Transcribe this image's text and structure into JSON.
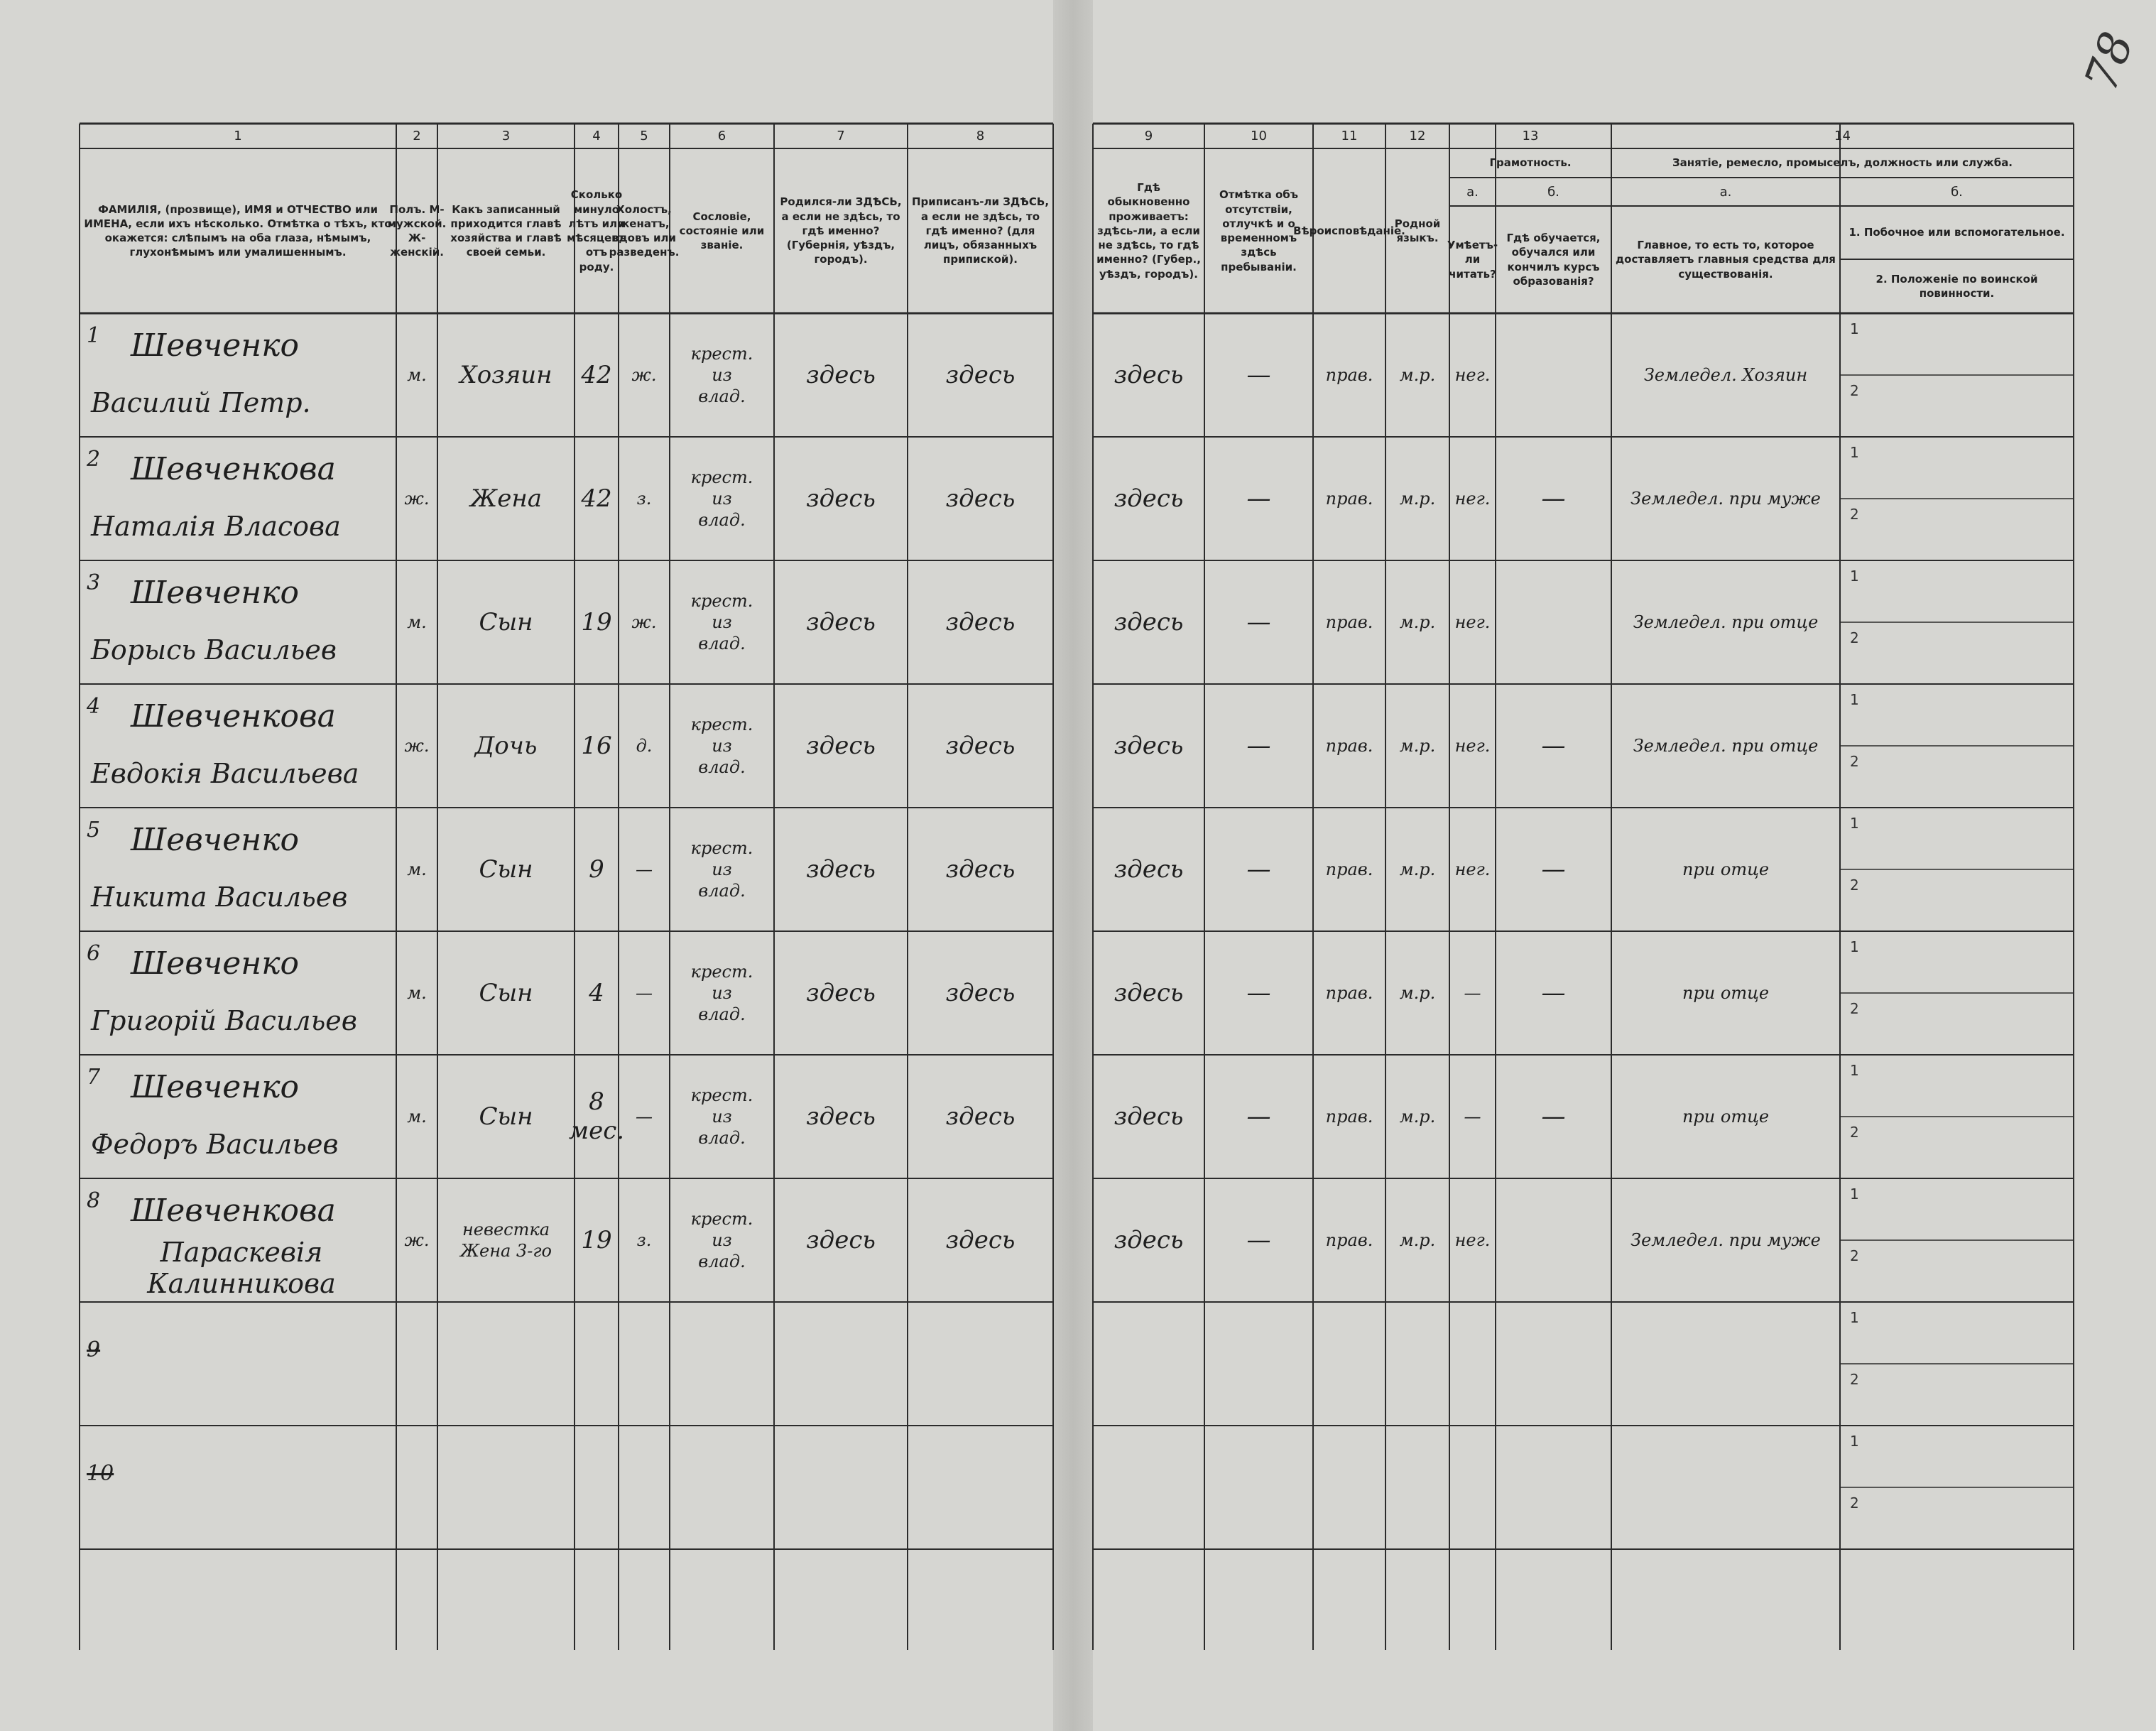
{
  "corner_mark": "78",
  "header": {
    "column_numbers": [
      "1",
      "2",
      "3",
      "4",
      "5",
      "6",
      "7",
      "8",
      "9",
      "10",
      "11",
      "12",
      "13",
      "14"
    ],
    "columns": {
      "name": "ФАМИЛІЯ, (прозвище), ИМЯ и ОТЧЕСТВО или ИМЕНА, если ихъ нѣсколько. Отмѣтка о тѣхъ, кто окажется: слѣпымъ на оба глаза, нѣмымъ, глухонѣмымъ или умалишеннымъ.",
      "sex": "Полъ. М-мужской. Ж-женскій.",
      "relation": "Какъ записанный приходится главѣ хозяйства и главѣ своей семьи.",
      "age": "Сколько минуло лѣтъ или мѣсяцевъ отъ роду.",
      "marital_status": "Холостъ, женатъ, вдовъ или разведенъ.",
      "estate": "Сословіе, состояніе или званіе.",
      "birthplace": "Родился-ли ЗДѢСЬ, а если не здѣсь, то гдѣ именно? (Губернія, уѣздъ, городъ).",
      "registered": "Приписанъ-ли ЗДѢСЬ, а если не здѣсь, то гдѣ именно? (для лицъ, обязанныхъ припиской).",
      "residence": "Гдѣ обыкновенно проживаетъ: здѣсь-ли, а если не здѣсь, то гдѣ именно? (Губер., уѣздъ, городъ).",
      "absence": "Отмѣтка объ отсутствіи, отлучкѣ и о временномъ здѣсь пребываніи.",
      "religion": "Вѣроисповѣданіе.",
      "language": "Родной языкъ.",
      "literacy_group": "Грамотность.",
      "literacy_a": "а.",
      "literacy_b": "б.",
      "literacy": "Умѣетъ-ли читать?",
      "education": "Гдѣ обучается, обучался или кончилъ курсъ образованія?",
      "occupation_group": "Занятіе, ремесло, промыселъ, должность или служба.",
      "occupation_a": "а.",
      "occupation_b": "б.",
      "occupation": "Главное, то есть то, которое доставляетъ главныя средства для существованія.",
      "side_1": "1. Побочное или вспомогательное.",
      "side_2": "2. Положеніе по воинской повинности."
    },
    "subrow_labels": [
      "1",
      "2"
    ]
  },
  "table": {
    "rows": [
      {
        "number": "1",
        "surname": "Шевченко",
        "given_names": "Василий Петр.",
        "sex": "м.",
        "relation": "Хозяин",
        "age": "42",
        "marital_status": "ж.",
        "estate": "крест. из влад.",
        "birthplace": "здесь",
        "registered": "здесь",
        "residence": "здесь",
        "absence": "—",
        "religion": "прав.",
        "language": "м.р.",
        "literacy": "нег.",
        "occupation": "Земледел. Хозяин"
      },
      {
        "number": "2",
        "surname": "Шевченкова",
        "given_names": "Наталія Власова",
        "sex": "ж.",
        "relation": "Жена",
        "age": "42",
        "marital_status": "з.",
        "estate": "крест. из влад.",
        "birthplace": "здесь",
        "registered": "здесь",
        "residence": "здесь",
        "absence": "—",
        "religion": "прав.",
        "language": "м.р.",
        "literacy": "нег.",
        "education": "—",
        "occupation": "Земледел. при муже"
      },
      {
        "number": "3",
        "surname": "Шевченко",
        "given_names": "Борысь Васильев",
        "sex": "м.",
        "relation": "Сын",
        "age": "19",
        "marital_status": "ж.",
        "estate": "крест. из влад.",
        "birthplace": "здесь",
        "registered": "здесь",
        "residence": "здесь",
        "absence": "—",
        "religion": "прав.",
        "language": "м.р.",
        "literacy": "нег.",
        "occupation": "Земледел. при отце"
      },
      {
        "number": "4",
        "surname": "Шевченкова",
        "given_names": "Евдокія Васильева",
        "sex": "ж.",
        "relation": "Дочь",
        "age": "16",
        "marital_status": "д.",
        "estate": "крест. из влад.",
        "birthplace": "здесь",
        "registered": "здесь",
        "residence": "здесь",
        "absence": "—",
        "religion": "прав.",
        "language": "м.р.",
        "literacy": "нег.",
        "education": "—",
        "occupation": "Земледел. при отце"
      },
      {
        "number": "5",
        "surname": "Шевченко",
        "given_names": "Никита Васильев",
        "sex": "м.",
        "relation": "Сын",
        "age": "9",
        "marital_status": "—",
        "estate": "крест. из влад.",
        "birthplace": "здесь",
        "registered": "здесь",
        "residence": "здесь",
        "absence": "—",
        "religion": "прав.",
        "language": "м.р.",
        "literacy": "нег.",
        "education": "—",
        "occupation": "при отце"
      },
      {
        "number": "6",
        "surname": "Шевченко",
        "given_names": "Григорій Васильев",
        "sex": "м.",
        "relation": "Сын",
        "age": "4",
        "marital_status": "—",
        "estate": "крест. из влад.",
        "birthplace": "здесь",
        "registered": "здесь",
        "residence": "здесь",
        "absence": "—",
        "religion": "прав.",
        "language": "м.р.",
        "literacy": "—",
        "education": "—",
        "occupation": "при отце"
      },
      {
        "number": "7",
        "surname": "Шевченко",
        "given_names": "Федоръ Васильев",
        "sex": "м.",
        "relation": "Сын",
        "age": "8 мес.",
        "marital_status": "—",
        "estate": "крест. из влад.",
        "birthplace": "здесь",
        "registered": "здесь",
        "residence": "здесь",
        "absence": "—",
        "religion": "прав.",
        "language": "м.р.",
        "literacy": "—",
        "education": "—",
        "occupation": "при отце"
      },
      {
        "number": "8",
        "surname": "Шевченкова",
        "given_names": "Параскевія Калинникова",
        "sex": "ж.",
        "relation": "невестка Жена 3-го",
        "age": "19",
        "marital_status": "з.",
        "estate": "крест. из влад.",
        "birthplace": "здесь",
        "registered": "здесь",
        "residence": "здесь",
        "absence": "—",
        "religion": "прав.",
        "language": "м.р.",
        "literacy": "нег.",
        "occupation": "Земледел. при муже"
      },
      {
        "number": "9"
      },
      {
        "number": "10"
      }
    ]
  }
}
